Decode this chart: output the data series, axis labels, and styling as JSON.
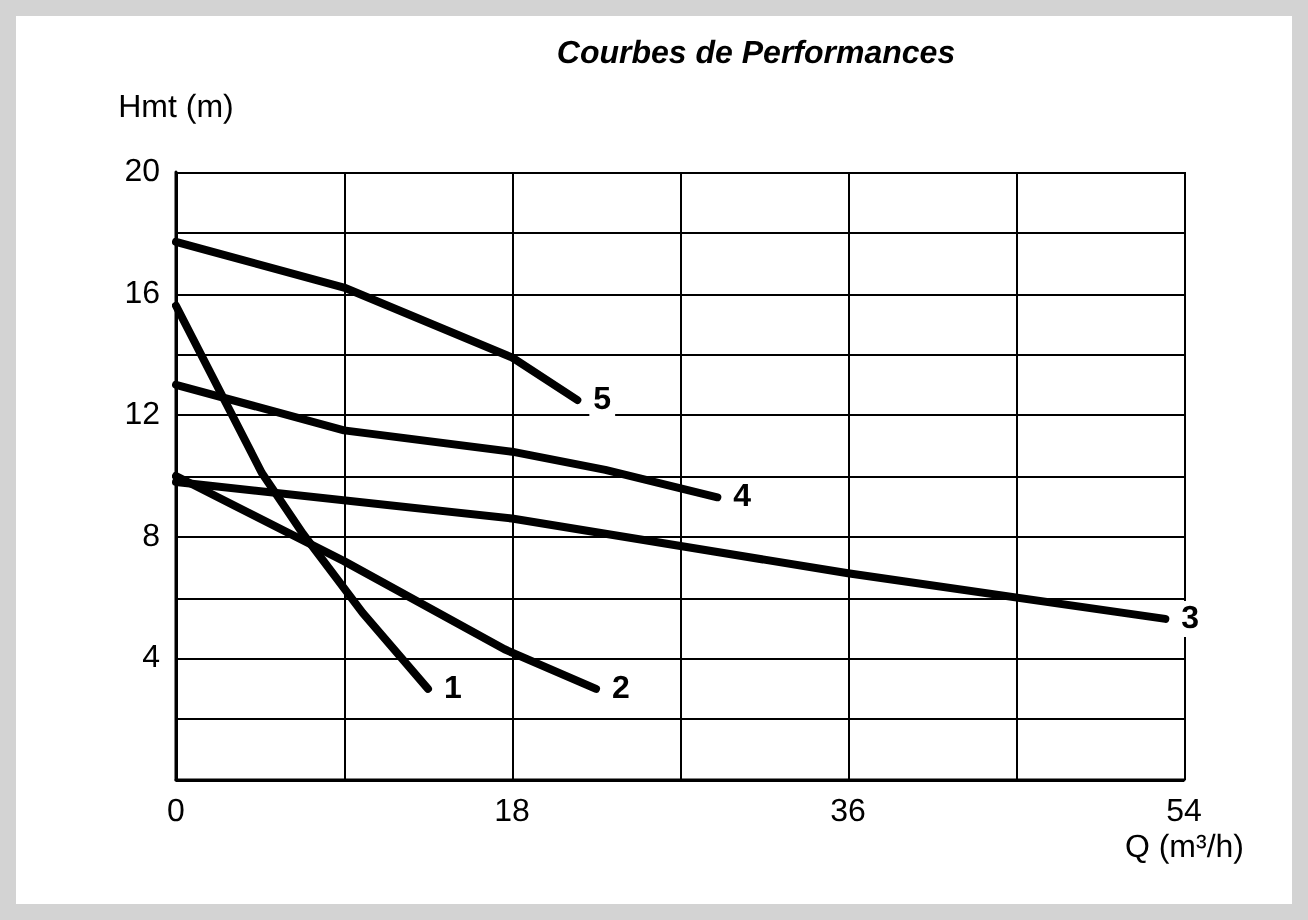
{
  "chart_data": {
    "type": "line",
    "title": "Courbes de Performances",
    "xlabel": "Q (m³/h)",
    "ylabel": "Hmt (m)",
    "xlim": [
      0,
      54
    ],
    "ylim": [
      0,
      20
    ],
    "xticks": [
      0,
      {
        "value": 9,
        "label": null
      },
      18,
      {
        "value": 27,
        "label": null
      },
      36,
      {
        "value": 45,
        "label": null
      },
      54
    ],
    "yticks": [
      {
        "value": 0,
        "label": null
      },
      {
        "value": 2,
        "label": null
      },
      4,
      {
        "value": 6,
        "label": null
      },
      8,
      {
        "value": 10,
        "label": null
      },
      12,
      {
        "value": 14,
        "label": null
      },
      16,
      {
        "value": 18,
        "label": null
      },
      20
    ],
    "grid": true,
    "marker": "none",
    "line_style": "solid",
    "series": [
      {
        "name": "1",
        "color": "#000000",
        "x": [
          0,
          4.6,
          6.8,
          10,
          13.5
        ],
        "values": [
          15.6,
          10.1,
          8.1,
          5.5,
          3
        ]
      },
      {
        "name": "2",
        "color": "#000000",
        "x": [
          0,
          9,
          17.6,
          22.5
        ],
        "values": [
          10,
          7.2,
          4.3,
          3
        ]
      },
      {
        "name": "3",
        "color": "#000000",
        "x": [
          0,
          18,
          36,
          53
        ],
        "values": [
          9.8,
          8.6,
          6.8,
          5.3
        ]
      },
      {
        "name": "4",
        "color": "#000000",
        "x": [
          0,
          9,
          18,
          23,
          29
        ],
        "values": [
          13,
          11.5,
          10.8,
          10.2,
          9.3
        ]
      },
      {
        "name": "5",
        "color": "#000000",
        "x": [
          0,
          9,
          18,
          21.5
        ],
        "values": [
          17.7,
          16.2,
          13.9,
          12.5
        ]
      }
    ]
  }
}
